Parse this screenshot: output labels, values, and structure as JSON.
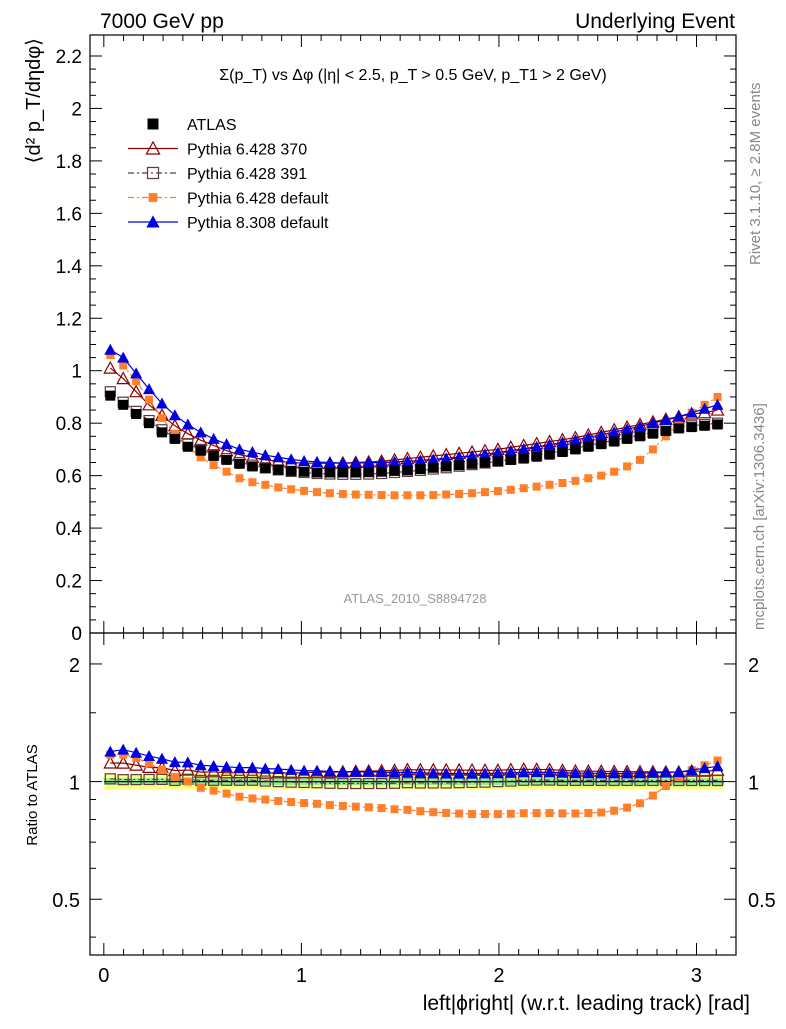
{
  "header": {
    "left": "7000 GeV pp",
    "right": "Underlying Event"
  },
  "side": {
    "rivet": "Rivet 3.1.10, ≥ 2.8M events",
    "mcplots": "mcplots.cern.ch [arXiv:1306.3436]"
  },
  "colors": {
    "atlas": "#000000",
    "py370": "#8b0000",
    "py391": "#5a3a46",
    "pydefault": "#ff7f2a",
    "py8": "#0000e0",
    "band_inner": "#90ee90",
    "band_outer": "#ffff80"
  },
  "chart_data": [
    {
      "type": "scatter",
      "title": "Σ(p_T) vs Δφ (|η| < 2.5, p_T > 0.5 GeV, p_T1 > 2 GeV)",
      "ylabel": "⟨d² p_T/dηdφ⟩",
      "xlabel": "",
      "watermark": "ATLAS_2010_S8894728",
      "xlim": [
        -0.07,
        3.2
      ],
      "ylim": [
        0,
        2.28
      ],
      "yticks": [
        "0",
        "0.2",
        "0.4",
        "0.6",
        "0.8",
        "1",
        "1.2",
        "1.4",
        "1.6",
        "1.8",
        "2",
        "2.2"
      ],
      "legend_position": "top-left",
      "x_start": 0.0327,
      "x_step": 0.0654,
      "n_points": 48,
      "series": [
        {
          "name": "ATLAS",
          "key": "atlas",
          "style": "filled-square",
          "values": [
            0.905,
            0.87,
            0.835,
            0.8,
            0.765,
            0.74,
            0.71,
            0.695,
            0.675,
            0.66,
            0.645,
            0.635,
            0.628,
            0.622,
            0.618,
            0.615,
            0.612,
            0.612,
            0.612,
            0.612,
            0.613,
            0.615,
            0.618,
            0.62,
            0.625,
            0.63,
            0.635,
            0.64,
            0.645,
            0.65,
            0.655,
            0.66,
            0.665,
            0.672,
            0.68,
            0.69,
            0.7,
            0.71,
            0.72,
            0.73,
            0.74,
            0.75,
            0.76,
            0.77,
            0.78,
            0.785,
            0.79,
            0.795
          ]
        },
        {
          "name": "Pythia 6.428 370",
          "key": "py370",
          "style": "open-triangle",
          "values": [
            1.01,
            0.97,
            0.92,
            0.87,
            0.83,
            0.79,
            0.76,
            0.735,
            0.715,
            0.695,
            0.68,
            0.67,
            0.66,
            0.655,
            0.65,
            0.648,
            0.647,
            0.647,
            0.648,
            0.65,
            0.652,
            0.655,
            0.66,
            0.665,
            0.67,
            0.675,
            0.68,
            0.685,
            0.69,
            0.695,
            0.7,
            0.708,
            0.715,
            0.722,
            0.73,
            0.737,
            0.745,
            0.755,
            0.765,
            0.775,
            0.785,
            0.795,
            0.805,
            0.815,
            0.825,
            0.835,
            0.84,
            0.85
          ]
        },
        {
          "name": "Pythia 6.428 391",
          "key": "py391",
          "style": "open-square",
          "values": [
            0.92,
            0.88,
            0.845,
            0.81,
            0.775,
            0.745,
            0.72,
            0.7,
            0.68,
            0.665,
            0.65,
            0.64,
            0.63,
            0.622,
            0.616,
            0.612,
            0.608,
            0.606,
            0.605,
            0.605,
            0.606,
            0.608,
            0.612,
            0.616,
            0.62,
            0.625,
            0.63,
            0.636,
            0.642,
            0.648,
            0.655,
            0.662,
            0.67,
            0.678,
            0.686,
            0.695,
            0.705,
            0.715,
            0.725,
            0.735,
            0.745,
            0.755,
            0.765,
            0.775,
            0.785,
            0.79,
            0.795,
            0.8
          ]
        },
        {
          "name": "Pythia 6.428 default",
          "key": "pydefault",
          "style": "filled-square-small",
          "values": [
            1.06,
            1.02,
            0.96,
            0.89,
            0.82,
            0.76,
            0.71,
            0.67,
            0.64,
            0.615,
            0.59,
            0.575,
            0.565,
            0.555,
            0.548,
            0.542,
            0.537,
            0.533,
            0.53,
            0.528,
            0.527,
            0.526,
            0.525,
            0.525,
            0.525,
            0.526,
            0.528,
            0.53,
            0.533,
            0.537,
            0.541,
            0.546,
            0.552,
            0.558,
            0.565,
            0.572,
            0.58,
            0.59,
            0.6,
            0.615,
            0.635,
            0.66,
            0.7,
            0.75,
            0.8,
            0.84,
            0.87,
            0.9
          ]
        },
        {
          "name": "Pythia 8.308 default",
          "key": "py8",
          "style": "filled-triangle",
          "values": [
            1.08,
            1.05,
            0.99,
            0.93,
            0.875,
            0.83,
            0.795,
            0.765,
            0.74,
            0.72,
            0.7,
            0.69,
            0.678,
            0.67,
            0.662,
            0.656,
            0.652,
            0.65,
            0.648,
            0.648,
            0.649,
            0.65,
            0.652,
            0.655,
            0.658,
            0.662,
            0.666,
            0.671,
            0.676,
            0.682,
            0.688,
            0.695,
            0.702,
            0.71,
            0.718,
            0.727,
            0.736,
            0.746,
            0.756,
            0.766,
            0.777,
            0.788,
            0.8,
            0.812,
            0.825,
            0.84,
            0.855,
            0.87
          ]
        }
      ]
    },
    {
      "type": "scatter",
      "title": "",
      "ylabel": "Ratio to ATLAS",
      "xlabel": "left|ϕright| (w.r.t. leading track) [rad]",
      "xlim": [
        -0.07,
        3.2
      ],
      "ylim": [
        0.36,
        2.4
      ],
      "log_y": true,
      "yticks": [
        "0.5",
        "1",
        "2"
      ],
      "xticks": [
        "0",
        "1",
        "2",
        "3"
      ],
      "band_inner": [
        0.98,
        1.02
      ],
      "band_outer": [
        0.955,
        1.045
      ]
    }
  ]
}
